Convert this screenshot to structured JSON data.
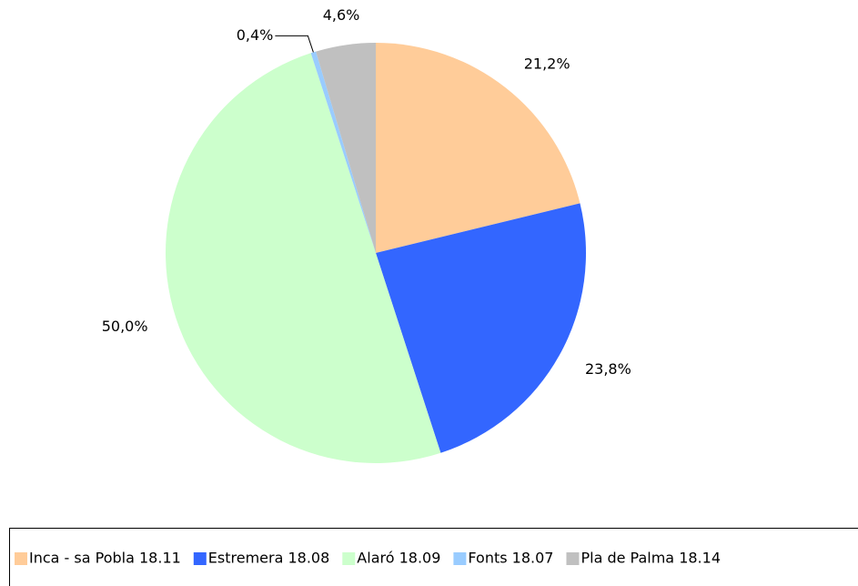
{
  "chart_data": {
    "type": "pie",
    "categories": [
      "Inca - sa Pobla 18.11",
      "Estremera 18.08",
      "Alaró 18.09",
      "Fonts 18.07",
      "Pla de Palma 18.14"
    ],
    "values": [
      21.2,
      23.8,
      50.0,
      0.4,
      4.6
    ],
    "value_labels": [
      "21,2%",
      "23,8%",
      "50,0%",
      "0,4%",
      "4,6%"
    ],
    "colors": [
      "#ffcc99",
      "#3366ff",
      "#ccffcc",
      "#99ccff",
      "#c0c0c0"
    ],
    "legend": "bottom"
  }
}
